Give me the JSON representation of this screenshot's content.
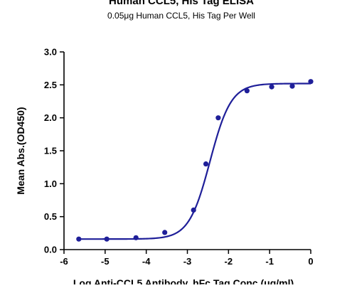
{
  "chart_data": {
    "type": "scatter",
    "title": "Human CCL5, His Tag ELISA",
    "subtitle": "0.05μg Human CCL5, His Tag Per Well",
    "xlabel": "Log Anti-CCL5 Antibody, hFc Tag Conc.(μg/ml)",
    "ylabel": "Mean Abs.(OD450)",
    "xlim": [
      -6,
      0
    ],
    "ylim": [
      0,
      3.0
    ],
    "x_ticks": [
      "-6",
      "-5",
      "-4",
      "-3",
      "-2",
      "-1",
      "0"
    ],
    "y_ticks": [
      "0.0",
      "0.5",
      "1.0",
      "1.5",
      "2.0",
      "2.5",
      "3.0"
    ],
    "grid": false,
    "series": [
      {
        "color": "#1f1f99",
        "points": [
          {
            "x": -5.64,
            "y": 0.16
          },
          {
            "x": -4.96,
            "y": 0.16
          },
          {
            "x": -4.25,
            "y": 0.18
          },
          {
            "x": -3.55,
            "y": 0.26
          },
          {
            "x": -2.85,
            "y": 0.6
          },
          {
            "x": -2.55,
            "y": 1.3
          },
          {
            "x": -2.25,
            "y": 2.0
          },
          {
            "x": -1.55,
            "y": 2.41
          },
          {
            "x": -0.95,
            "y": 2.47
          },
          {
            "x": -0.45,
            "y": 2.48
          },
          {
            "x": 0.0,
            "y": 2.55
          }
        ],
        "fit": {
          "model": "4PL",
          "bottom": 0.16,
          "top": 2.52,
          "log_ec50": -2.45,
          "hill_slope": 1.7
        }
      }
    ]
  }
}
